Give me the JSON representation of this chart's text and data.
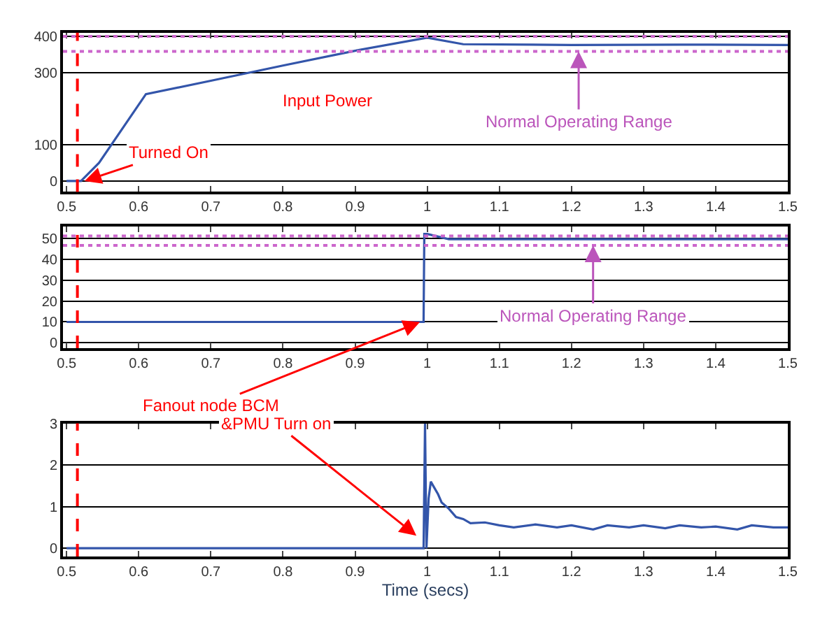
{
  "chart_data": [
    {
      "type": "line",
      "xlim": [
        0.495,
        1.5
      ],
      "xticks": [
        0.5,
        0.6,
        0.7,
        0.8,
        0.9,
        1,
        1.1,
        1.2,
        1.3,
        1.4,
        1.5
      ],
      "ylim": [
        -30,
        410
      ],
      "yticks": [
        0,
        100,
        300,
        400
      ],
      "grid": "y",
      "series": [
        {
          "color": "#3355aa",
          "x": [
            0.5,
            0.52,
            0.545,
            0.61,
            0.7,
            0.8,
            0.9,
            1.0,
            1.05,
            1.2,
            1.35,
            1.5
          ],
          "values": [
            0,
            0,
            50,
            240,
            277,
            319,
            360,
            396,
            378,
            376,
            377,
            376
          ]
        }
      ],
      "ref_lines": [
        {
          "axis": "y",
          "value": 400,
          "color": "#cc66cc",
          "line_style": "dotted"
        },
        {
          "axis": "y",
          "value": 358,
          "color": "#cc66cc",
          "line_style": "dotted"
        },
        {
          "axis": "x",
          "value": 0.515,
          "color": "#ff0000",
          "line_style": "dashed"
        }
      ],
      "annotations": [
        "Input Power",
        {
          "text": "Turned On",
          "x": 0.525,
          "y": 0
        },
        {
          "text": "Normal Operating Range",
          "x": 1.21,
          "y": 358
        }
      ]
    },
    {
      "type": "line",
      "xlim": [
        0.495,
        1.5
      ],
      "xticks": [
        0.5,
        0.6,
        0.7,
        0.8,
        0.9,
        1,
        1.1,
        1.2,
        1.3,
        1.4,
        1.5
      ],
      "ylim": [
        -2.5,
        55.5
      ],
      "yticks": [
        0,
        10,
        20,
        30,
        40,
        50
      ],
      "grid": "y",
      "series": [
        {
          "color": "#3355aa",
          "x": [
            0.5,
            0.7,
            0.9,
            0.995,
            0.996,
            1.0,
            1.03,
            1.2,
            1.5
          ],
          "values": [
            10,
            10,
            10,
            10,
            52,
            52,
            49.5,
            49.5,
            49.5
          ]
        }
      ],
      "ref_lines": [
        {
          "axis": "y",
          "value": 51,
          "color": "#cc66cc",
          "line_style": "dotted"
        },
        {
          "axis": "y",
          "value": 46.5,
          "color": "#cc66cc",
          "line_style": "dotted"
        },
        {
          "axis": "x",
          "value": 0.515,
          "color": "#ff0000",
          "line_style": "dashed"
        }
      ],
      "annotations": [
        {
          "text": "Normal Operating Range",
          "x": 1.23,
          "y": 46.5
        },
        {
          "text": "Fanout node BCM",
          "x": 0.99,
          "y": 10
        }
      ]
    },
    {
      "type": "line",
      "xlabel": "Time (secs)",
      "xlim": [
        0.495,
        1.5
      ],
      "xticks": [
        0.5,
        0.6,
        0.7,
        0.8,
        0.9,
        1,
        1.1,
        1.2,
        1.3,
        1.4,
        1.5
      ],
      "ylim": [
        -0.2,
        3
      ],
      "yticks": [
        0,
        1,
        2,
        3
      ],
      "grid": "y",
      "series": [
        {
          "color": "#3355aa",
          "x": [
            0.5,
            0.6,
            0.7,
            0.8,
            0.9,
            0.995,
            0.997,
            0.999,
            1.002,
            1.005,
            1.01,
            1.015,
            1.02,
            1.03,
            1.04,
            1.05,
            1.06,
            1.08,
            1.1,
            1.12,
            1.15,
            1.18,
            1.2,
            1.23,
            1.25,
            1.28,
            1.3,
            1.33,
            1.35,
            1.38,
            1.4,
            1.43,
            1.45,
            1.48,
            1.5
          ],
          "values": [
            0,
            0,
            0,
            0,
            0,
            0,
            3,
            0,
            1.2,
            1.6,
            1.45,
            1.3,
            1.1,
            0.95,
            0.75,
            0.7,
            0.6,
            0.62,
            0.55,
            0.5,
            0.57,
            0.5,
            0.55,
            0.45,
            0.55,
            0.5,
            0.55,
            0.48,
            0.55,
            0.5,
            0.52,
            0.45,
            0.55,
            0.5,
            0.5
          ]
        }
      ],
      "ref_lines": [
        {
          "axis": "x",
          "value": 0.515,
          "color": "#ff0000",
          "line_style": "dashed"
        }
      ],
      "annotations": [
        {
          "text": "&PMU Turn on",
          "x": 0.985,
          "y": 0.3
        }
      ]
    }
  ]
}
